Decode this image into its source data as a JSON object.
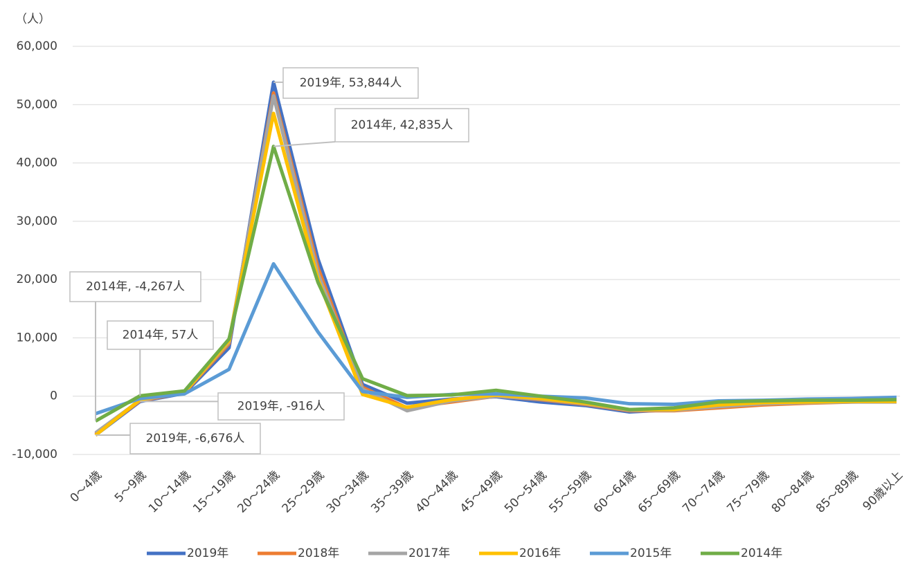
{
  "chart_data": {
    "type": "line",
    "y_label": "（人）",
    "categories": [
      "0～4歳",
      "5～9歳",
      "10～14歳",
      "15～19歳",
      "20～24歳",
      "25～29歳",
      "30～34歳",
      "35～39歳",
      "40～44歳",
      "45～49歳",
      "50～54歳",
      "55～59歳",
      "60～64歳",
      "65～69歳",
      "70～74歳",
      "75～79歳",
      "80～84歳",
      "85～89歳",
      "90歳以上"
    ],
    "ylim": [
      -10000,
      60000
    ],
    "yticks": [
      {
        "value": -10000,
        "label": "-10,000"
      },
      0,
      {
        "value": 10000,
        "label": "10,000"
      },
      {
        "value": 20000,
        "label": "20,000"
      },
      {
        "value": 30000,
        "label": "30,000"
      },
      {
        "value": 40000,
        "label": "40,000"
      },
      {
        "value": 50000,
        "label": "50,000"
      },
      {
        "value": 60000,
        "label": "60,000"
      }
    ],
    "grid": true,
    "legend": "bottom",
    "series": [
      {
        "name": "2019年",
        "color": "#4472c4",
        "values": [
          -6676,
          -916,
          500,
          8300,
          53844,
          23500,
          2000,
          -1200,
          -500,
          -100,
          -1000,
          -1600,
          -2700,
          -2300,
          -1500,
          -1200,
          -1000,
          -900,
          -800
        ],
        "value_labels": [
          "2019年, -6,676人",
          "2019年, -916人",
          null,
          null,
          "2019年, 53,844人",
          null,
          null,
          null,
          null,
          null,
          null,
          null,
          null,
          null,
          null,
          null,
          null,
          null,
          null
        ]
      },
      {
        "name": "2018年",
        "color": "#ed7d31",
        "values": [
          -6500,
          -800,
          600,
          9000,
          52000,
          22000,
          1500,
          -2000,
          -1000,
          0,
          -600,
          -1400,
          -2500,
          -2500,
          -2000,
          -1500,
          -1200,
          -1000,
          -900
        ]
      },
      {
        "name": "2017年",
        "color": "#a5a5a5",
        "values": [
          -6300,
          -700,
          700,
          9300,
          51500,
          21000,
          1200,
          -2500,
          -800,
          0,
          -500,
          -1300,
          -2400,
          -2400,
          -1800,
          -1300,
          -1100,
          -1000,
          -1000
        ]
      },
      {
        "name": "2016年",
        "color": "#ffc000",
        "values": [
          -6700,
          -600,
          700,
          9500,
          48500,
          20000,
          300,
          -1900,
          -600,
          200,
          -400,
          -1200,
          -2300,
          -2300,
          -1500,
          -1100,
          -1000,
          -900,
          -900
        ]
      },
      {
        "name": "2015年",
        "color": "#5b9bd5",
        "values": [
          -3000,
          -400,
          400,
          4600,
          22700,
          11000,
          800,
          -200,
          300,
          400,
          0,
          -300,
          -1300,
          -1400,
          -800,
          -700,
          -500,
          -400,
          -200
        ]
      },
      {
        "name": "2014年",
        "color": "#70ad47",
        "values": [
          -4267,
          57,
          900,
          9800,
          42835,
          19500,
          3000,
          100,
          200,
          1000,
          0,
          -1000,
          -2300,
          -2000,
          -1000,
          -800,
          -700,
          -700,
          -600
        ],
        "value_labels": [
          "2014年, -4,267人",
          "2014年, 57人",
          null,
          null,
          "2014年, 42,835人",
          null,
          null,
          null,
          null,
          null,
          null,
          null,
          null,
          null,
          null,
          null,
          null,
          null,
          null
        ]
      }
    ]
  }
}
